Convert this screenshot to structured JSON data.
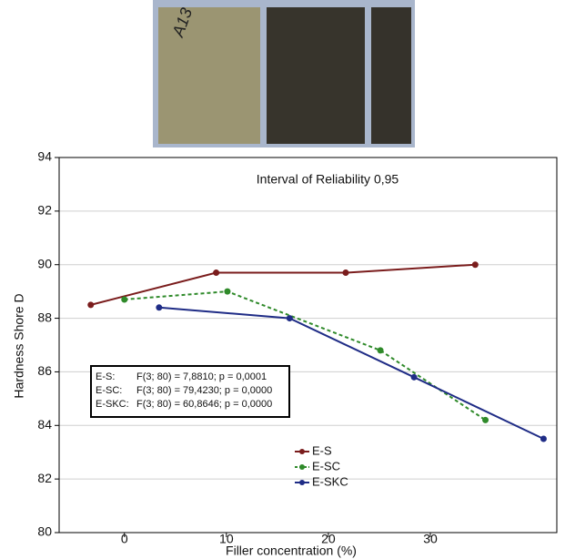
{
  "photo_label": "A13",
  "chart_data": {
    "type": "line",
    "annotation": "Interval of Reliability 0,95",
    "x_label": "Filler concentration (%)",
    "y_label": "Hardness Shore D",
    "xlim": [
      -6.4,
      42.4
    ],
    "xticks": [
      0,
      10,
      20,
      30
    ],
    "ylim": [
      80,
      94
    ],
    "yticks": [
      80,
      82,
      84,
      86,
      88,
      90,
      92,
      94
    ],
    "grid": true,
    "series": [
      {
        "name": "E-S",
        "color": "#7a1c1c",
        "dash": false,
        "x": [
          -3.3,
          9.0,
          21.7,
          34.4
        ],
        "values": [
          88.5,
          89.7,
          89.7,
          90.0
        ]
      },
      {
        "name": "E-SC",
        "color": "#2f8a2a",
        "dash": true,
        "x": [
          0,
          10.1,
          25.1,
          35.4
        ],
        "values": [
          88.7,
          89.0,
          86.8,
          84.2
        ]
      },
      {
        "name": "E-SKC",
        "color": "#1f2c86",
        "dash": false,
        "x": [
          3.4,
          16.2,
          28.4,
          41.1
        ],
        "values": [
          88.4,
          88.0,
          85.8,
          83.5
        ]
      }
    ],
    "stats": [
      {
        "label": "E-S:",
        "text": "F(3; 80) =  7,8810;  p = 0,0001"
      },
      {
        "label": "E-SC:",
        "text": "F(3; 80) = 79,4230;  p = 0,0000"
      },
      {
        "label": "E-SKC:",
        "text": "F(3; 80) = 60,8646;  p = 0,0000"
      }
    ]
  }
}
